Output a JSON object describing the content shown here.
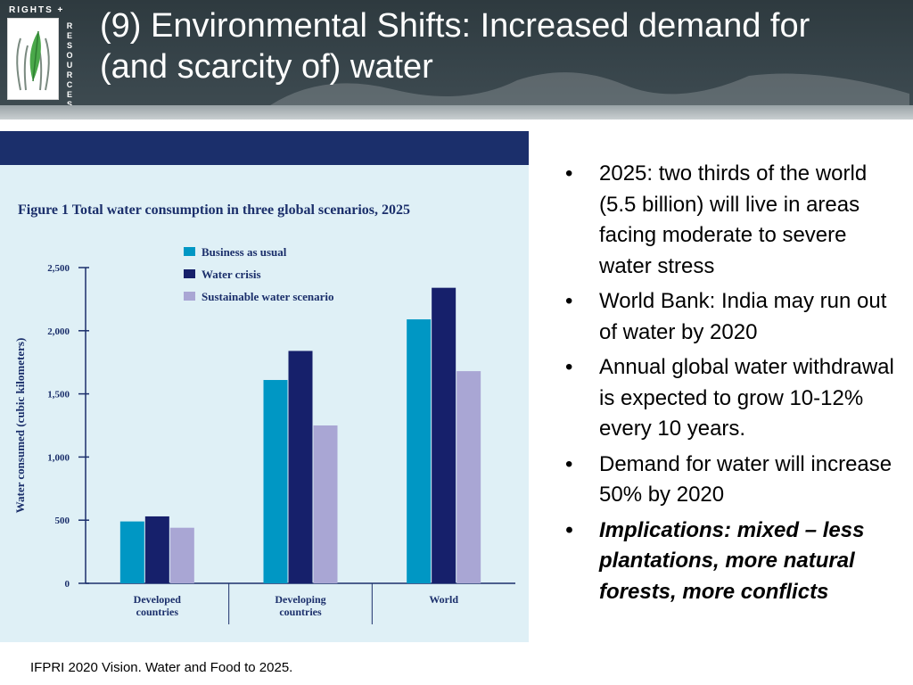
{
  "header": {
    "title": "(9) Environmental Shifts: Increased demand for (and scarcity of) water",
    "logo": {
      "top_text": "RIGHTS +",
      "side_text": "RESOURCES",
      "icon": "hands-leaf-icon"
    }
  },
  "bullets": [
    {
      "text": "2025: two thirds of the world (5.5 billion) will live in areas facing moderate to severe water stress",
      "emphasis": false
    },
    {
      "text": "World Bank: India may run out of water by 2020",
      "emphasis": false
    },
    {
      "text": "Annual global water withdrawal is expected to grow 10-12% every 10 years.",
      "emphasis": false
    },
    {
      "text": "Demand for water will increase 50% by 2020",
      "emphasis": false
    },
    {
      "text": "Implications: mixed – less plantations, more natural forests, more conflicts",
      "emphasis": true
    }
  ],
  "source": "IFPRI 2020 Vision. Water and Food to 2025.",
  "colors": {
    "header_bg": "#37444a",
    "figure_bg": "#dff0f6",
    "figure_band": "#1b2f6b"
  },
  "chart_data": {
    "type": "bar",
    "title": "Figure 1  Total water consumption in three global scenarios, 2025",
    "ylabel": "Water consumed (cubic kilometers)",
    "xlabel": "",
    "categories": [
      "Developed countries",
      "Developing countries",
      "World"
    ],
    "series": [
      {
        "name": "Business as usual",
        "color": "#0097c4",
        "values": [
          490,
          1610,
          2090
        ]
      },
      {
        "name": "Water crisis",
        "color": "#16206b",
        "values": [
          530,
          1840,
          2340
        ]
      },
      {
        "name": "Sustainable water scenario",
        "color": "#a9a6d4",
        "values": [
          440,
          1250,
          1680
        ]
      }
    ],
    "ylim": [
      0,
      2500
    ],
    "yticks": [
      {
        "value": 0,
        "label": "0"
      },
      {
        "value": 500,
        "label": "500"
      },
      {
        "value": 1000,
        "label": "1,000"
      },
      {
        "value": 1500,
        "label": "1,500"
      },
      {
        "value": 2000,
        "label": "2,000"
      },
      {
        "value": 2500,
        "label": "2,500"
      }
    ],
    "legend_position": "top-center",
    "grid": false
  }
}
